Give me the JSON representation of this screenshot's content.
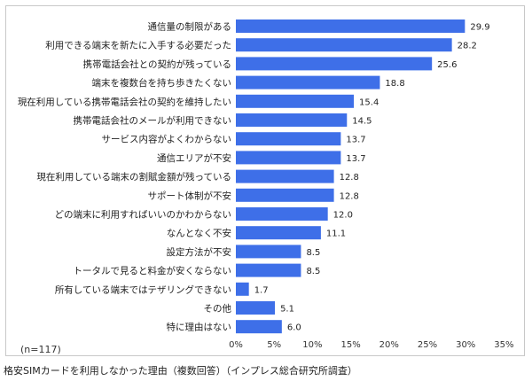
{
  "caption": "格安SIMカードを利用しなかった理由（複数回答）（インプレス総合研究所調査）",
  "sample_note": "(n=117)",
  "chart_data": {
    "type": "bar",
    "orientation": "horizontal",
    "categories": [
      "通信量の制限がある",
      "利用できる端末を新たに入手する必要だった",
      "携帯電話会社との契約が残っている",
      "端末を複数台を持ち歩きたくない",
      "現在利用している携帯電話会社の契約を維持したい",
      "携帯電話会社のメールが利用できない",
      "サービス内容がよくわからない",
      "通信エリアが不安",
      "現在利用している端末の割賦金額が残っている",
      "サポート体制が不安",
      "どの端末に利用すればいいのかわからない",
      "なんとなく不安",
      "設定方法が不安",
      "トータルで見ると料金が安くならない",
      "所有している端末ではテザリングできない",
      "その他",
      "特に理由はない"
    ],
    "values": [
      29.9,
      28.2,
      25.6,
      18.8,
      15.4,
      14.5,
      13.7,
      13.7,
      12.8,
      12.8,
      12.0,
      11.1,
      8.5,
      8.5,
      1.7,
      5.1,
      6.0
    ],
    "value_labels": [
      "29.9",
      "28.2",
      "25.6",
      "18.8",
      "15.4",
      "14.5",
      "13.7",
      "13.7",
      "12.8",
      "12.8",
      "12.0",
      "11.1",
      "8.5",
      "8.5",
      "1.7",
      "5.1",
      "6.0"
    ],
    "xlim": [
      0,
      35
    ],
    "xticks": [
      "0%",
      "5%",
      "10%",
      "15%",
      "20%",
      "25%",
      "30%",
      "35%"
    ],
    "grid": false,
    "bar_color": "#3e6fe8",
    "title": "",
    "xlabel": "",
    "ylabel": ""
  }
}
